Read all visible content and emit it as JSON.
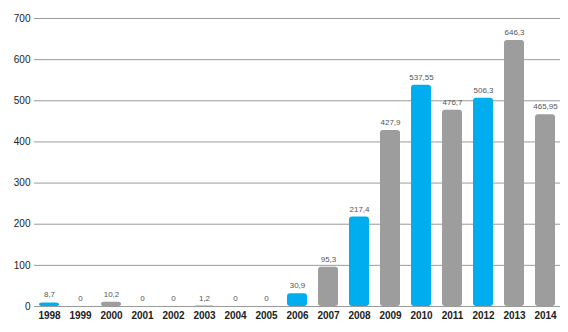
{
  "chart_data": {
    "type": "bar",
    "categories": [
      "1998",
      "1999",
      "2000",
      "2001",
      "2002",
      "2003",
      "2004",
      "2005",
      "2006",
      "2007",
      "2008",
      "2009",
      "2010",
      "2011",
      "2012",
      "2013",
      "2014"
    ],
    "values": [
      8.7,
      0,
      10.2,
      0,
      0,
      1.2,
      0,
      0,
      30.9,
      95.3,
      217.4,
      427.9,
      537.55,
      476.7,
      506.3,
      646.3,
      465.95
    ],
    "value_labels": [
      "8,7",
      "0",
      "10,2",
      "0",
      "0",
      "1,2",
      "0",
      "0",
      "30,9",
      "95,3",
      "217,4",
      "427,9",
      "537,55",
      "476,7",
      "506,3",
      "646,3",
      "465,95"
    ],
    "colors": [
      "#00aeef",
      "#9d9d9d",
      "#9d9d9d",
      "#9d9d9d",
      "#9d9d9d",
      "#9d9d9d",
      "#9d9d9d",
      "#9d9d9d",
      "#00aeef",
      "#9d9d9d",
      "#00aeef",
      "#9d9d9d",
      "#00aeef",
      "#9d9d9d",
      "#00aeef",
      "#9d9d9d",
      "#9d9d9d"
    ],
    "ylim": [
      0,
      700
    ],
    "yticks": [
      0,
      100,
      200,
      300,
      400,
      500,
      600,
      700
    ],
    "grid": true,
    "data_labels": true
  }
}
